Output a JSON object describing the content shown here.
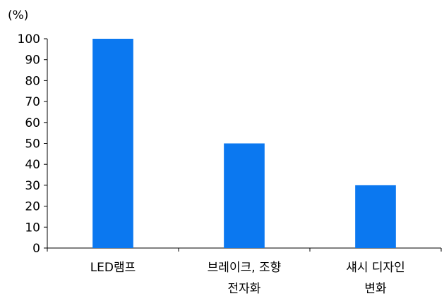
{
  "chart_data": {
    "type": "bar",
    "unit_label": "(%)",
    "categories": [
      [
        "LED램프"
      ],
      [
        "브레이크, 조향",
        "전자화"
      ],
      [
        "섀시 디자인",
        "변화"
      ]
    ],
    "values": [
      100,
      50,
      30
    ],
    "ylim": [
      0,
      100
    ],
    "yticks": [
      0,
      10,
      20,
      30,
      40,
      50,
      60,
      70,
      80,
      90,
      100
    ],
    "bar_color": "#0b78f0",
    "axis_color": "#000000",
    "grid": false,
    "legend": "none"
  }
}
